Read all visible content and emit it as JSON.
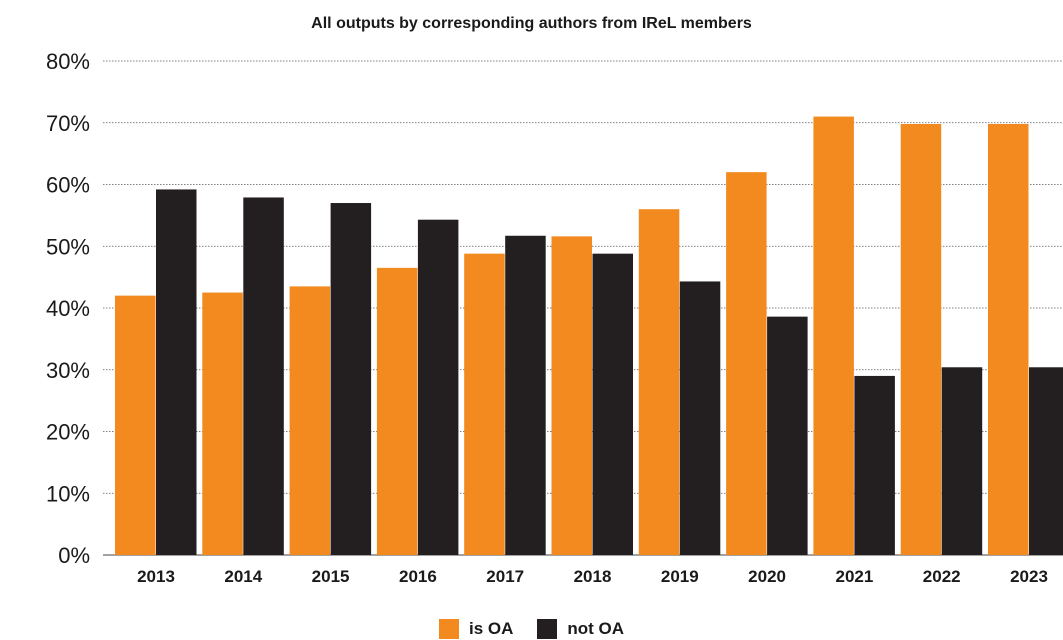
{
  "chart_data": {
    "type": "bar",
    "title": "All outputs by corresponding authors from IReL members",
    "categories": [
      "2013",
      "2014",
      "2015",
      "2016",
      "2017",
      "2018",
      "2019",
      "2020",
      "2021",
      "2022",
      "2023"
    ],
    "series": [
      {
        "name": "is OA",
        "color": "#f28a20",
        "values": [
          42,
          42.5,
          43.5,
          46.5,
          48.8,
          51.6,
          56,
          62,
          71,
          69.8,
          69.8
        ]
      },
      {
        "name": "not OA",
        "color": "#231f20",
        "values": [
          59.2,
          57.9,
          57,
          54.3,
          51.7,
          48.8,
          44.3,
          38.6,
          29,
          30.4,
          30.4
        ]
      }
    ],
    "ylim": [
      0,
      80
    ],
    "yticks": [
      "0%",
      "10%",
      "20%",
      "30%",
      "40%",
      "50%",
      "60%",
      "70%",
      "80%"
    ],
    "grid": true,
    "legend_position": "bottom-center"
  }
}
